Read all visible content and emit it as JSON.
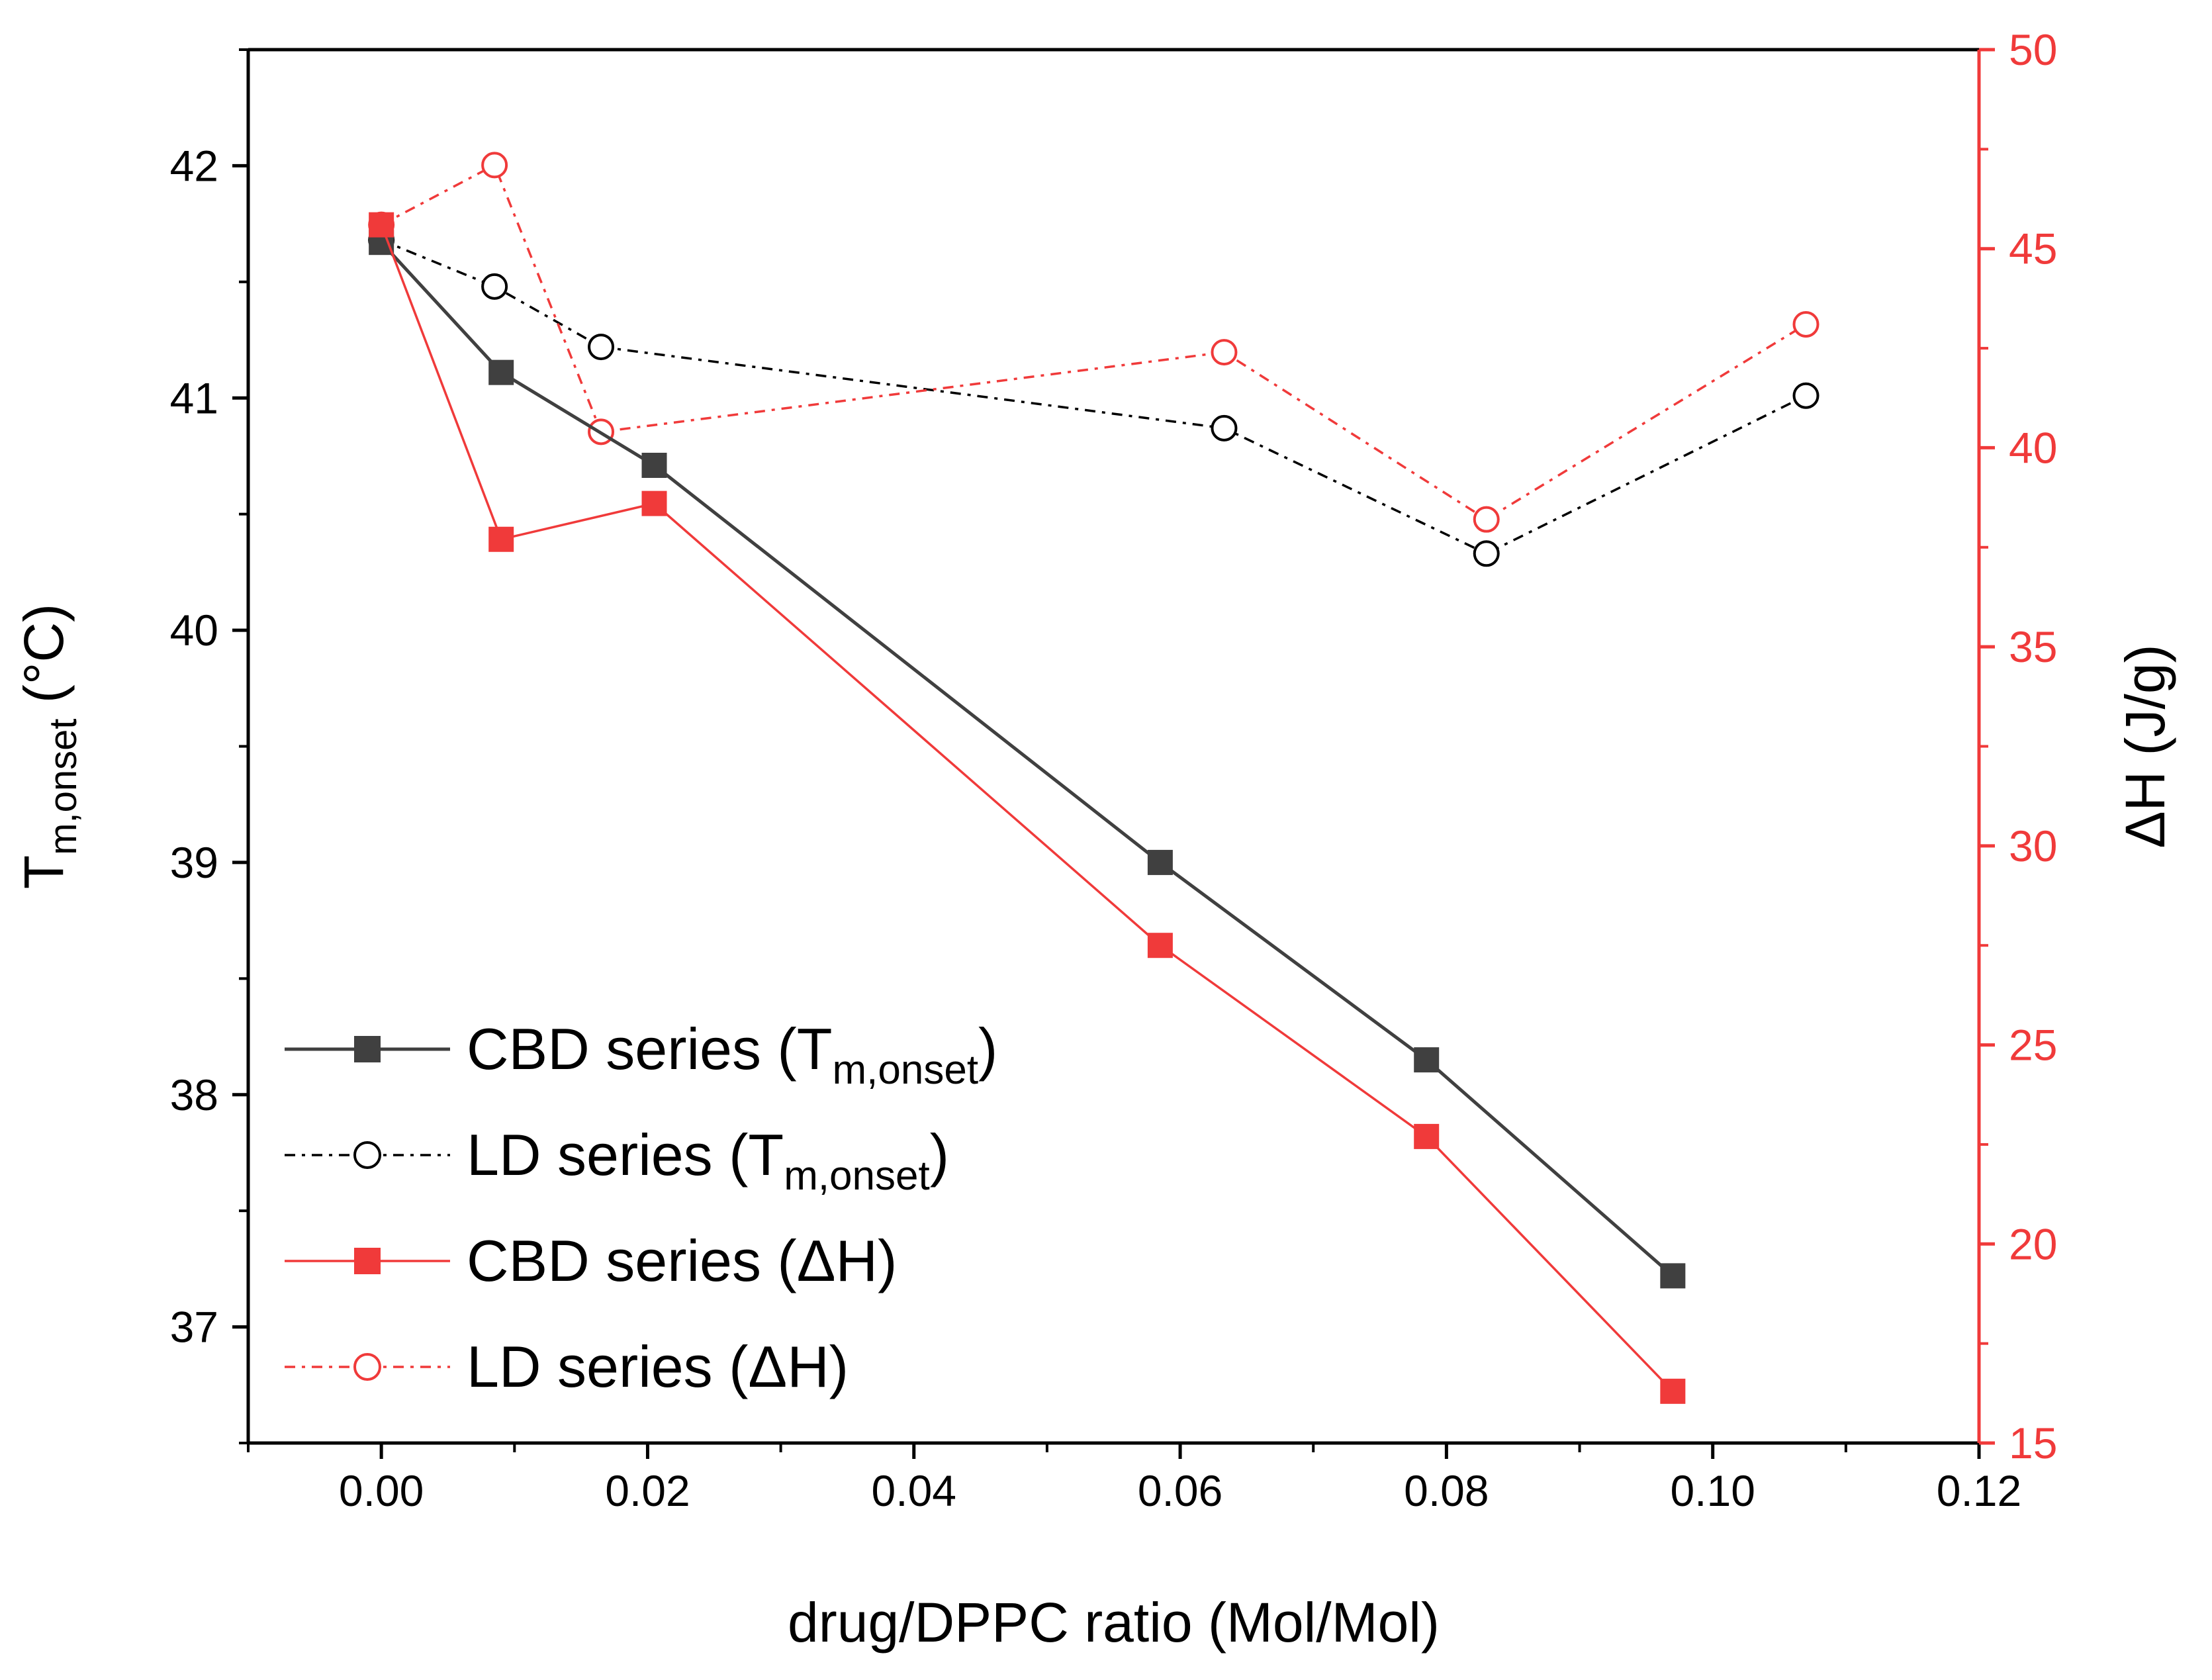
{
  "chart_data": {
    "type": "line",
    "xlabel": "drug/DPPC ratio (Mol/Mol)",
    "ylabel_left": {
      "base": "T",
      "sub": "m,onset",
      "unit": " (°C)"
    },
    "ylabel_right": "ΔH (J/g)",
    "xlim": [
      -0.01,
      0.12
    ],
    "ylim_left": [
      36.5,
      42.5
    ],
    "ylim_right": [
      15,
      50
    ],
    "x_ticks": [
      "0.00",
      "0.02",
      "0.04",
      "0.06",
      "0.08",
      "0.10",
      "0.12"
    ],
    "y_left_ticks": [
      "37",
      "38",
      "39",
      "40",
      "41",
      "42"
    ],
    "y_right_ticks": [
      "15",
      "20",
      "25",
      "30",
      "35",
      "40",
      "45",
      "50"
    ],
    "series": [
      {
        "name": "CBD series (T_m,onset)",
        "legend": {
          "prefix": "CBD series (T",
          "sub": "m,onset",
          "suffix": ")"
        },
        "axis": "left",
        "color": "#404040",
        "marker": "square-filled",
        "line": "solid",
        "x": [
          0.0,
          0.009,
          0.0205,
          0.0585,
          0.0785,
          0.097
        ],
        "y": [
          41.67,
          41.11,
          40.71,
          39.0,
          38.15,
          37.22
        ]
      },
      {
        "name": "LD series (T_m,onset)",
        "legend": {
          "prefix": "LD series (T",
          "sub": "m,onset",
          "suffix": ")"
        },
        "axis": "left",
        "color": "#000000",
        "marker": "circle-open",
        "line": "dashdot",
        "x": [
          0.0,
          0.0085,
          0.0165,
          0.0633,
          0.083,
          0.107
        ],
        "y": [
          41.68,
          41.48,
          41.22,
          40.87,
          40.33,
          41.01
        ]
      },
      {
        "name": "CBD series (ΔH)",
        "legend": {
          "prefix": "CBD series (ΔH)",
          "sub": "",
          "suffix": ""
        },
        "axis": "right",
        "color": "#f03a3a",
        "marker": "square-filled",
        "line": "solid",
        "x": [
          0.0,
          0.009,
          0.0205,
          0.0585,
          0.0785,
          0.097
        ],
        "y": [
          45.6,
          37.7,
          38.6,
          27.5,
          22.7,
          16.3
        ]
      },
      {
        "name": "LD series (ΔH)",
        "legend": {
          "prefix": "LD series (ΔH)",
          "sub": "",
          "suffix": ""
        },
        "axis": "right",
        "color": "#f03a3a",
        "marker": "circle-open",
        "line": "dashdot",
        "x": [
          0.0,
          0.0085,
          0.0165,
          0.0633,
          0.083,
          0.107
        ],
        "y": [
          45.6,
          47.1,
          40.4,
          42.4,
          38.2,
          43.1
        ]
      }
    ],
    "legend_position": "bottom-left"
  }
}
